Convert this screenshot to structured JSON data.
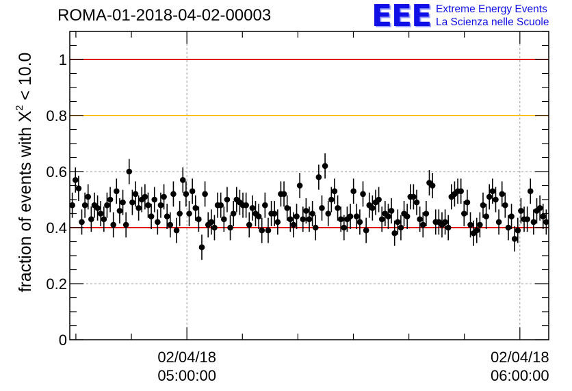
{
  "header": {
    "run_title": "ROMA-01-2018-04-02-00003",
    "logo_mark": "EEE",
    "logo_line1": "Extreme Energy Events",
    "logo_line2": "La Scienza nelle Scuole"
  },
  "chart_data": {
    "type": "scatter",
    "title": "ROMA-01-2018-04-02-00003",
    "xlabel": "",
    "ylabel_prefix": "fraction of events with X",
    "ylabel_sup": "2",
    "ylabel_suffix": " < 10.0",
    "xlim_minutes_after_0400": [
      38.9,
      125.2
    ],
    "ylim": [
      0,
      1.1
    ],
    "grid": true,
    "y_ticks": [
      0,
      0.2,
      0.4,
      0.6,
      0.8,
      1
    ],
    "y_tick_labels": [
      "0",
      "0.2",
      "0.4",
      "0.6",
      "0.8",
      "1"
    ],
    "x_major_ticks": [
      {
        "minutes_after_0400": 60,
        "date": "02/04/18",
        "time": "05:00:00"
      },
      {
        "minutes_after_0400": 120,
        "date": "02/04/18",
        "time": "06:00:00"
      }
    ],
    "reference_lines": [
      {
        "y": 1.0,
        "color": "#e00000"
      },
      {
        "y": 0.8,
        "color": "#ffc000"
      },
      {
        "y": 0.4,
        "color": "#e00000"
      }
    ],
    "error_bar": 0.045,
    "points_y": [
      0.48,
      0.57,
      0.54,
      0.42,
      0.48,
      0.51,
      0.43,
      0.48,
      0.47,
      0.45,
      0.43,
      0.48,
      0.5,
      0.41,
      0.53,
      0.46,
      0.49,
      0.41,
      0.6,
      0.49,
      0.52,
      0.47,
      0.5,
      0.51,
      0.48,
      0.44,
      0.5,
      0.42,
      0.48,
      0.51,
      0.44,
      0.41,
      0.52,
      0.39,
      0.45,
      0.57,
      0.52,
      0.45,
      0.53,
      0.47,
      0.43,
      0.33,
      0.52,
      0.41,
      0.42,
      0.4,
      0.48,
      0.48,
      0.43,
      0.5,
      0.4,
      0.45,
      0.5,
      0.49,
      0.48,
      0.48,
      0.41,
      0.47,
      0.45,
      0.44,
      0.39,
      0.48,
      0.39,
      0.45,
      0.45,
      0.42,
      0.52,
      0.52,
      0.47,
      0.43,
      0.41,
      0.44,
      0.55,
      0.43,
      0.46,
      0.43,
      0.45,
      0.4,
      0.58,
      0.47,
      0.62,
      0.45,
      0.5,
      0.53,
      0.47,
      0.43,
      0.4,
      0.43,
      0.44,
      0.53,
      0.44,
      0.42,
      0.52,
      0.39,
      0.48,
      0.47,
      0.49,
      0.5,
      0.43,
      0.45,
      0.44,
      0.46,
      0.38,
      0.42,
      0.4,
      0.45,
      0.44,
      0.51,
      0.51,
      0.49,
      0.43,
      0.41,
      0.45,
      0.56,
      0.55,
      0.42,
      0.42,
      0.41,
      0.42,
      0.4,
      0.51,
      0.52,
      0.53,
      0.53,
      0.45,
      0.49,
      0.41,
      0.38,
      0.39,
      0.41,
      0.48,
      0.44,
      0.51,
      0.53,
      0.5,
      0.42,
      0.52,
      0.48,
      0.4,
      0.44,
      0.36,
      0.39,
      0.46,
      0.43,
      0.43,
      0.53,
      0.42,
      0.46,
      0.47,
      0.44,
      0.42
    ]
  }
}
